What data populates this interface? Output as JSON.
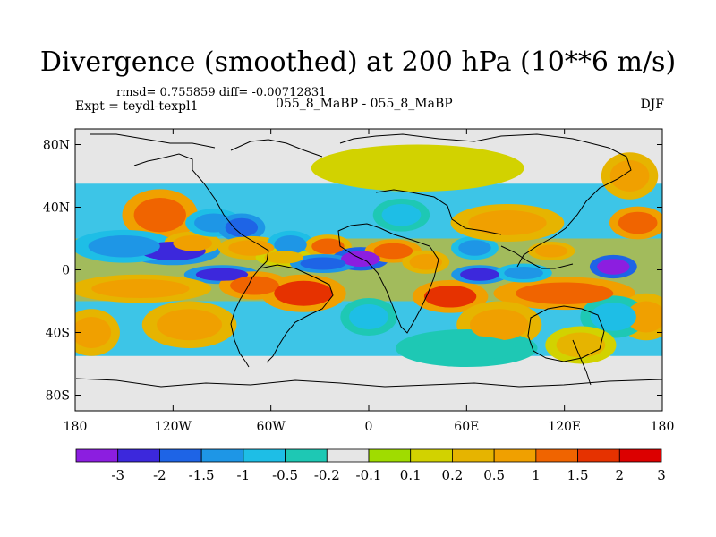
{
  "title": "Divergence (smoothed) at 200 hPa (10**6 m/s)",
  "stats_text": "rmsd= 0.755859 diff= -0.00712831",
  "experiment_text": "Expt = teydl-texpl1",
  "center_text": "055_8_MaBP - 055_8_MaBP",
  "season": "DJF",
  "colors": {
    "land_outline": "#000000",
    "neutral": "#e6e6e6"
  },
  "chart_data": {
    "type": "heatmap",
    "title": "Divergence (smoothed) at 200 hPa (10**6 m/s)",
    "x_range": [
      -180,
      180
    ],
    "y_range": [
      -90,
      90
    ],
    "x_ticks": [
      {
        "value": -180,
        "label": "180"
      },
      {
        "value": -120,
        "label": "120W"
      },
      {
        "value": -60,
        "label": "60W"
      },
      {
        "value": 0,
        "label": "0"
      },
      {
        "value": 60,
        "label": "60E"
      },
      {
        "value": 120,
        "label": "120E"
      },
      {
        "value": 180,
        "label": "180"
      }
    ],
    "y_ticks": [
      {
        "value": 80,
        "label": "80N"
      },
      {
        "value": 40,
        "label": "40N"
      },
      {
        "value": 0,
        "label": "0"
      },
      {
        "value": -40,
        "label": "40S"
      },
      {
        "value": -80,
        "label": "80S"
      }
    ],
    "colorbar": {
      "colors": [
        "#8c1ee0",
        "#3c28dc",
        "#1e64e6",
        "#1e96e6",
        "#1ebee6",
        "#1ec8b4",
        "#e6e6e6",
        "#a0dc00",
        "#d2d200",
        "#e6b400",
        "#f0a000",
        "#f06400",
        "#e63200",
        "#dc0000"
      ],
      "labels": [
        "-3",
        "-2",
        "-1.5",
        "-1",
        "-0.5",
        "-0.2",
        "-0.1",
        "0.1",
        "0.2",
        "0.5",
        "1",
        "1.5",
        "2",
        "3"
      ]
    },
    "anomalies": [
      {
        "lon": -128,
        "lat": 35,
        "rlon": 16,
        "rlat": 11,
        "value": 1.5
      },
      {
        "lon": -120,
        "lat": 12,
        "rlon": 20,
        "rlat": 6,
        "value": -1.8
      },
      {
        "lon": -150,
        "lat": 15,
        "rlon": 22,
        "rlat": 7,
        "value": -0.8
      },
      {
        "lon": -108,
        "lat": 17,
        "rlon": 12,
        "rlat": 5,
        "value": 1.0
      },
      {
        "lon": -95,
        "lat": 30,
        "rlon": 12,
        "rlat": 6,
        "value": -1.0
      },
      {
        "lon": -78,
        "lat": 27,
        "rlon": 10,
        "rlat": 6,
        "value": -1.6
      },
      {
        "lon": -72,
        "lat": 14,
        "rlon": 14,
        "rlat": 5,
        "value": 1.2
      },
      {
        "lon": -48,
        "lat": 16,
        "rlon": 10,
        "rlat": 6,
        "value": -0.8
      },
      {
        "lon": -52,
        "lat": 8,
        "rlon": 12,
        "rlat": 4,
        "value": 0.5
      },
      {
        "lon": -25,
        "lat": 15,
        "rlon": 10,
        "rlat": 5,
        "value": 1.3
      },
      {
        "lon": -5,
        "lat": 7,
        "rlon": 12,
        "rlat": 5,
        "value": -3.0
      },
      {
        "lon": -28,
        "lat": 4,
        "rlon": 14,
        "rlat": 4,
        "value": -1.6
      },
      {
        "lon": 15,
        "lat": 12,
        "rlon": 12,
        "rlat": 5,
        "value": 1.5
      },
      {
        "lon": 35,
        "lat": 5,
        "rlon": 10,
        "rlat": 5,
        "value": 0.8
      },
      {
        "lon": 65,
        "lat": 14,
        "rlon": 10,
        "rlat": 5,
        "value": -0.8
      },
      {
        "lon": 112,
        "lat": 12,
        "rlon": 10,
        "rlat": 4,
        "value": 1.0
      },
      {
        "lon": 150,
        "lat": 2,
        "rlon": 10,
        "rlat": 5,
        "value": -3.0
      },
      {
        "lon": 165,
        "lat": 30,
        "rlon": 12,
        "rlat": 7,
        "value": 1.5
      },
      {
        "lon": 85,
        "lat": 30,
        "rlon": 24,
        "rlat": 8,
        "value": 0.8
      },
      {
        "lon": 20,
        "lat": 35,
        "rlon": 12,
        "rlat": 7,
        "value": -0.5
      },
      {
        "lon": 160,
        "lat": 60,
        "rlon": 12,
        "rlat": 10,
        "value": 0.8
      },
      {
        "lon": -90,
        "lat": -3,
        "rlon": 16,
        "rlat": 4,
        "value": -2.0
      },
      {
        "lon": -70,
        "lat": -10,
        "rlon": 15,
        "rlat": 6,
        "value": 1.5
      },
      {
        "lon": -40,
        "lat": -15,
        "rlon": 18,
        "rlat": 8,
        "value": 1.8
      },
      {
        "lon": -140,
        "lat": -12,
        "rlon": 30,
        "rlat": 6,
        "value": 1.0
      },
      {
        "lon": 50,
        "lat": -17,
        "rlon": 16,
        "rlat": 7,
        "value": 2.2
      },
      {
        "lon": 120,
        "lat": -15,
        "rlon": 30,
        "rlat": 7,
        "value": 1.6
      },
      {
        "lon": 68,
        "lat": -3,
        "rlon": 12,
        "rlat": 4,
        "value": -2.0
      },
      {
        "lon": 95,
        "lat": -2,
        "rlon": 12,
        "rlat": 4,
        "value": -1.0
      },
      {
        "lon": 80,
        "lat": -35,
        "rlon": 18,
        "rlat": 10,
        "value": 1.0
      },
      {
        "lon": 0,
        "lat": -30,
        "rlon": 12,
        "rlat": 8,
        "value": -0.5
      },
      {
        "lon": -110,
        "lat": -35,
        "rlon": 20,
        "rlat": 10,
        "value": 0.8
      },
      {
        "lon": -170,
        "lat": -40,
        "rlon": 12,
        "rlat": 10,
        "value": 0.8
      },
      {
        "lon": 170,
        "lat": -30,
        "rlon": 12,
        "rlat": 10,
        "value": 0.8
      },
      {
        "lon": 150,
        "lat": -30,
        "rlon": 14,
        "rlat": 9,
        "value": -0.5
      },
      {
        "lon": 130,
        "lat": -48,
        "rlon": 15,
        "rlat": 8,
        "value": 0.5
      },
      {
        "lon": 60,
        "lat": -50,
        "rlon": 30,
        "rlat": 8,
        "value": -0.3
      },
      {
        "lon": 30,
        "lat": 65,
        "rlon": 45,
        "rlat": 10,
        "value": 0.3
      }
    ]
  }
}
